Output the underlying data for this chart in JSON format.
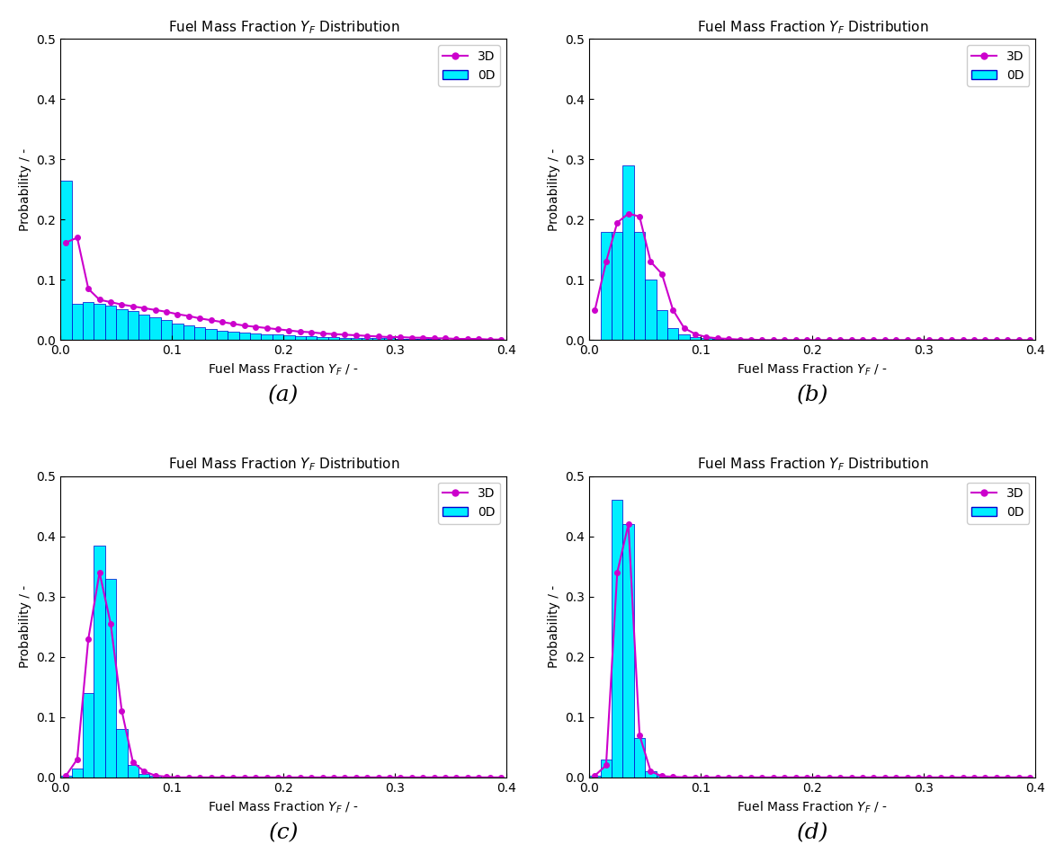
{
  "title": "Fuel Mass Fraction $Y_F$ Distribution",
  "xlabel": "Fuel Mass Fraction $Y_F$ / -",
  "ylabel": "Probability / -",
  "xlim": [
    0.0,
    0.4
  ],
  "ylim": [
    0.0,
    0.5
  ],
  "xticks": [
    0.0,
    0.1,
    0.2,
    0.3,
    0.4
  ],
  "yticks": [
    0.0,
    0.1,
    0.2,
    0.3,
    0.4,
    0.5
  ],
  "bar_color": "#00EEFF",
  "bar_edge_color": "#0000CC",
  "line_color": "#CC00CC",
  "marker": "o",
  "subplots": [
    "(a)",
    "(b)",
    "(c)",
    "(d)"
  ],
  "panels": {
    "a": {
      "bar_centers": [
        0.005,
        0.015,
        0.025,
        0.035,
        0.045,
        0.055,
        0.065,
        0.075,
        0.085,
        0.095,
        0.105,
        0.115,
        0.125,
        0.135,
        0.145,
        0.155,
        0.165,
        0.175,
        0.185,
        0.195,
        0.205,
        0.215,
        0.225,
        0.235,
        0.245,
        0.255,
        0.265,
        0.275,
        0.285,
        0.295,
        0.305,
        0.315,
        0.325,
        0.335,
        0.345,
        0.355,
        0.365,
        0.375,
        0.385,
        0.395
      ],
      "bar_heights": [
        0.265,
        0.06,
        0.063,
        0.06,
        0.057,
        0.052,
        0.048,
        0.043,
        0.038,
        0.033,
        0.028,
        0.024,
        0.021,
        0.018,
        0.016,
        0.014,
        0.012,
        0.011,
        0.01,
        0.009,
        0.008,
        0.007,
        0.006,
        0.005,
        0.005,
        0.004,
        0.004,
        0.003,
        0.003,
        0.003,
        0.002,
        0.002,
        0.002,
        0.002,
        0.001,
        0.001,
        0.001,
        0.001,
        0.001,
        0.001
      ],
      "line_x": [
        0.005,
        0.015,
        0.025,
        0.035,
        0.045,
        0.055,
        0.065,
        0.075,
        0.085,
        0.095,
        0.105,
        0.115,
        0.125,
        0.135,
        0.145,
        0.155,
        0.165,
        0.175,
        0.185,
        0.195,
        0.205,
        0.215,
        0.225,
        0.235,
        0.245,
        0.255,
        0.265,
        0.275,
        0.285,
        0.295,
        0.305,
        0.315,
        0.325,
        0.335,
        0.345,
        0.355,
        0.365,
        0.375,
        0.385,
        0.395
      ],
      "line_y": [
        0.162,
        0.17,
        0.085,
        0.067,
        0.063,
        0.059,
        0.056,
        0.053,
        0.05,
        0.047,
        0.043,
        0.04,
        0.036,
        0.033,
        0.03,
        0.027,
        0.024,
        0.022,
        0.02,
        0.018,
        0.016,
        0.014,
        0.013,
        0.011,
        0.01,
        0.009,
        0.008,
        0.007,
        0.006,
        0.005,
        0.005,
        0.004,
        0.004,
        0.003,
        0.003,
        0.002,
        0.002,
        0.002,
        0.001,
        0.001
      ]
    },
    "b": {
      "bar_centers": [
        0.005,
        0.015,
        0.025,
        0.035,
        0.045,
        0.055,
        0.065,
        0.075,
        0.085,
        0.095,
        0.105,
        0.115,
        0.125,
        0.135,
        0.145,
        0.155,
        0.165,
        0.175,
        0.185,
        0.195,
        0.205,
        0.215,
        0.225,
        0.235,
        0.245,
        0.255,
        0.265,
        0.275,
        0.285,
        0.295,
        0.305,
        0.315,
        0.325,
        0.335,
        0.345,
        0.355,
        0.365,
        0.375,
        0.385,
        0.395
      ],
      "bar_heights": [
        0.0,
        0.18,
        0.18,
        0.29,
        0.18,
        0.1,
        0.05,
        0.02,
        0.01,
        0.005,
        0.003,
        0.002,
        0.001,
        0.001,
        0.001,
        0.0,
        0.0,
        0.0,
        0.0,
        0.0,
        0.0,
        0.0,
        0.0,
        0.0,
        0.0,
        0.0,
        0.0,
        0.0,
        0.0,
        0.0,
        0.0,
        0.0,
        0.0,
        0.0,
        0.0,
        0.0,
        0.0,
        0.0,
        0.0,
        0.0
      ],
      "line_x": [
        0.005,
        0.015,
        0.025,
        0.035,
        0.045,
        0.055,
        0.065,
        0.075,
        0.085,
        0.095,
        0.105,
        0.115,
        0.125,
        0.135,
        0.145,
        0.155,
        0.165,
        0.175,
        0.185,
        0.195,
        0.205,
        0.215,
        0.225,
        0.235,
        0.245,
        0.255,
        0.265,
        0.275,
        0.285,
        0.295,
        0.305,
        0.315,
        0.325,
        0.335,
        0.345,
        0.355,
        0.365,
        0.375,
        0.385,
        0.395
      ],
      "line_y": [
        0.05,
        0.13,
        0.195,
        0.21,
        0.205,
        0.13,
        0.11,
        0.05,
        0.02,
        0.01,
        0.005,
        0.003,
        0.002,
        0.001,
        0.001,
        0.0,
        0.0,
        0.0,
        0.0,
        0.0,
        0.0,
        0.0,
        0.0,
        0.0,
        0.0,
        0.0,
        0.0,
        0.0,
        0.0,
        0.0,
        0.0,
        0.0,
        0.0,
        0.0,
        0.0,
        0.0,
        0.0,
        0.0,
        0.0,
        0.0
      ]
    },
    "c": {
      "bar_centers": [
        0.005,
        0.015,
        0.025,
        0.035,
        0.045,
        0.055,
        0.065,
        0.075,
        0.085,
        0.095,
        0.105,
        0.115,
        0.125,
        0.135,
        0.145,
        0.155,
        0.165,
        0.175,
        0.185,
        0.195,
        0.205,
        0.215,
        0.225,
        0.235,
        0.245,
        0.255,
        0.265,
        0.275,
        0.285,
        0.295,
        0.305,
        0.315,
        0.325,
        0.335,
        0.345,
        0.355,
        0.365,
        0.375,
        0.385,
        0.395
      ],
      "bar_heights": [
        0.003,
        0.015,
        0.14,
        0.385,
        0.33,
        0.08,
        0.02,
        0.005,
        0.002,
        0.0,
        0.0,
        0.0,
        0.0,
        0.0,
        0.0,
        0.0,
        0.0,
        0.0,
        0.0,
        0.0,
        0.0,
        0.0,
        0.0,
        0.0,
        0.0,
        0.0,
        0.0,
        0.0,
        0.0,
        0.0,
        0.0,
        0.0,
        0.0,
        0.0,
        0.0,
        0.0,
        0.0,
        0.0,
        0.0,
        0.0
      ],
      "line_x": [
        0.005,
        0.015,
        0.025,
        0.035,
        0.045,
        0.055,
        0.065,
        0.075,
        0.085,
        0.095,
        0.105,
        0.115,
        0.125,
        0.135,
        0.145,
        0.155,
        0.165,
        0.175,
        0.185,
        0.195,
        0.205,
        0.215,
        0.225,
        0.235,
        0.245,
        0.255,
        0.265,
        0.275,
        0.285,
        0.295,
        0.305,
        0.315,
        0.325,
        0.335,
        0.345,
        0.355,
        0.365,
        0.375,
        0.385,
        0.395
      ],
      "line_y": [
        0.003,
        0.03,
        0.23,
        0.34,
        0.255,
        0.11,
        0.025,
        0.01,
        0.003,
        0.001,
        0.0,
        0.0,
        0.0,
        0.0,
        0.0,
        0.0,
        0.0,
        0.0,
        0.0,
        0.0,
        0.0,
        0.0,
        0.0,
        0.0,
        0.0,
        0.0,
        0.0,
        0.0,
        0.0,
        0.0,
        0.0,
        0.0,
        0.0,
        0.0,
        0.0,
        0.0,
        0.0,
        0.0,
        0.0,
        0.0
      ]
    },
    "d": {
      "bar_centers": [
        0.005,
        0.015,
        0.025,
        0.035,
        0.045,
        0.055,
        0.065,
        0.075,
        0.085,
        0.095,
        0.105,
        0.115,
        0.125,
        0.135,
        0.145,
        0.155,
        0.165,
        0.175,
        0.185,
        0.195,
        0.205,
        0.215,
        0.225,
        0.235,
        0.245,
        0.255,
        0.265,
        0.275,
        0.285,
        0.295,
        0.305,
        0.315,
        0.325,
        0.335,
        0.345,
        0.355,
        0.365,
        0.375,
        0.385,
        0.395
      ],
      "bar_heights": [
        0.003,
        0.03,
        0.46,
        0.42,
        0.065,
        0.01,
        0.002,
        0.0,
        0.0,
        0.0,
        0.0,
        0.0,
        0.0,
        0.0,
        0.0,
        0.0,
        0.0,
        0.0,
        0.0,
        0.0,
        0.0,
        0.0,
        0.0,
        0.0,
        0.0,
        0.0,
        0.0,
        0.0,
        0.0,
        0.0,
        0.0,
        0.0,
        0.0,
        0.0,
        0.0,
        0.0,
        0.0,
        0.0,
        0.0,
        0.0
      ],
      "line_x": [
        0.005,
        0.015,
        0.025,
        0.035,
        0.045,
        0.055,
        0.065,
        0.075,
        0.085,
        0.095,
        0.105,
        0.115,
        0.125,
        0.135,
        0.145,
        0.155,
        0.165,
        0.175,
        0.185,
        0.195,
        0.205,
        0.215,
        0.225,
        0.235,
        0.245,
        0.255,
        0.265,
        0.275,
        0.285,
        0.295,
        0.305,
        0.315,
        0.325,
        0.335,
        0.345,
        0.355,
        0.365,
        0.375,
        0.385,
        0.395
      ],
      "line_y": [
        0.003,
        0.02,
        0.34,
        0.42,
        0.07,
        0.01,
        0.002,
        0.001,
        0.0,
        0.0,
        0.0,
        0.0,
        0.0,
        0.0,
        0.0,
        0.0,
        0.0,
        0.0,
        0.0,
        0.0,
        0.0,
        0.0,
        0.0,
        0.0,
        0.0,
        0.0,
        0.0,
        0.0,
        0.0,
        0.0,
        0.0,
        0.0,
        0.0,
        0.0,
        0.0,
        0.0,
        0.0,
        0.0,
        0.0,
        0.0
      ]
    }
  }
}
